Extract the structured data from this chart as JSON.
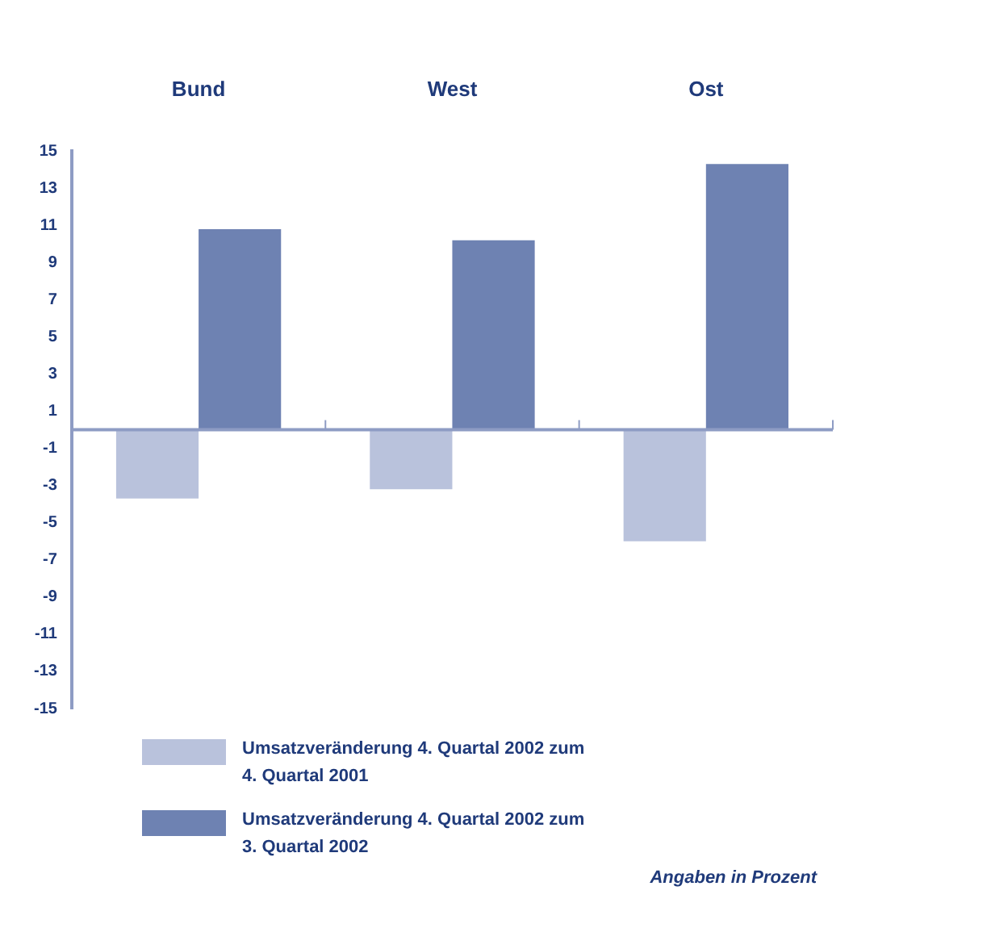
{
  "chart_data": {
    "type": "bar",
    "categories": [
      "Bund",
      "West",
      "Ost"
    ],
    "series": [
      {
        "name": "Umsatzveränderung 4. Quartal 2002 zum 4. Quartal 2001",
        "color": "#b9c2dc",
        "values": [
          -3.7,
          -3.2,
          -6.0
        ]
      },
      {
        "name": "Umsatzveränderung 4. Quartal 2002 zum 3. Quartal 2002",
        "color": "#6e82b2",
        "values": [
          10.8,
          10.2,
          14.3
        ]
      }
    ],
    "ylim": [
      -15,
      15
    ],
    "yticks": [
      -15,
      -13,
      -11,
      -9,
      -7,
      -5,
      -3,
      -1,
      1,
      3,
      5,
      7,
      9,
      11,
      13,
      15
    ],
    "grid": false,
    "legend": "bottom",
    "ref_lines": [
      {
        "axis": "y",
        "value": 0,
        "color": "#8e9cc4"
      }
    ],
    "annotations": [
      "Angaben in Prozent"
    ]
  }
}
